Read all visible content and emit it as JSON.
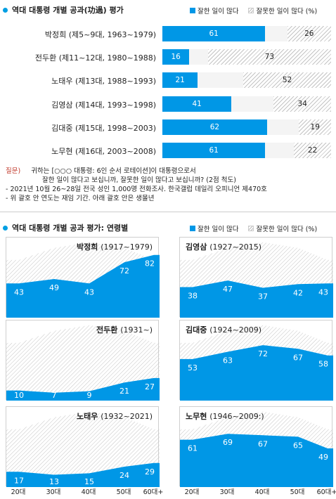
{
  "colors": {
    "positive": "#0097e6",
    "negative_hatch": "#c4c4c4",
    "accent": "#009fe3",
    "question": "#c0392b"
  },
  "section1": {
    "title": "역대 대통령 개별 공과(功過) 평가",
    "legend_pos": "잘한 일이 많다",
    "legend_neg": "잘못한 일이 많다 (%)"
  },
  "chart_data": [
    {
      "type": "bar",
      "stacked": true,
      "orientation": "horizontal",
      "title": "역대 대통령 개별 공과(功過) 평가",
      "categories": [
        "박정희 (제5~9대, 1963~1979)",
        "전두환 (제11~12대, 1980~1988)",
        "노태우 (제13대, 1988~1993)",
        "김영삼 (제14대, 1993~1998)",
        "김대중 (제15대, 1998~2003)",
        "노무현 (제16대, 2003~2008)"
      ],
      "series": [
        {
          "name": "잘한 일이 많다",
          "values": [
            61,
            16,
            21,
            41,
            62,
            61
          ]
        },
        {
          "name": "잘못한 일이 많다",
          "values": [
            26,
            73,
            52,
            34,
            19,
            22
          ]
        }
      ],
      "xlim": [
        0,
        100
      ],
      "legend": "top-right"
    },
    {
      "type": "area",
      "title": "역대 대통령 개별 공과 평가: 연령별",
      "categories": [
        "20대",
        "30대",
        "40대",
        "50대",
        "60대+"
      ],
      "legend": "top-right",
      "panels": [
        {
          "name": "박정희",
          "years": "(1917~1979)",
          "series": [
            {
              "name": "잘한 일이 많다",
              "values": [
                43,
                49,
                43,
                72,
                82
              ]
            }
          ]
        },
        {
          "name": "김영삼",
          "years": "(1927~2015)",
          "series": [
            {
              "name": "잘한 일이 많다",
              "values": [
                38,
                47,
                37,
                42,
                43
              ]
            }
          ]
        },
        {
          "name": "전두환",
          "years": "(1931~)",
          "series": [
            {
              "name": "잘한 일이 많다",
              "values": [
                10,
                7,
                9,
                21,
                27
              ]
            }
          ]
        },
        {
          "name": "김대중",
          "years": "(1924~2009)",
          "series": [
            {
              "name": "잘한 일이 많다",
              "values": [
                53,
                63,
                72,
                67,
                58
              ]
            }
          ]
        },
        {
          "name": "노태우",
          "years": "(1932~2021)",
          "series": [
            {
              "name": "잘한 일이 많다",
              "values": [
                17,
                13,
                15,
                24,
                29
              ]
            }
          ]
        },
        {
          "name": "노무현",
          "years": "(1946~2009:)",
          "series": [
            {
              "name": "잘한 일이 많다",
              "values": [
                61,
                69,
                67,
                65,
                49
              ]
            }
          ]
        }
      ]
    }
  ],
  "notes": {
    "question_label": "질문)",
    "question_line1": "귀하는 [○○○ 대통령: 6인 순서 로테이션]이 대통령으로서",
    "question_line2": "잘한 일이 많다고 보십니까, 잘못한 일이 많다고 보십니까? (2점 척도)",
    "line3": "- 2021년 10월 26~28일 전국 성인 1,000명 전화조사. 한국갤럽 데일리 오피니언 제470호",
    "line4": "- 위 괄호 안 연도는 재임 기간. 아래 괄호 안은 생몰년"
  },
  "section2": {
    "title": "역대 대통령 개별 공과 평가: 연령별",
    "legend_pos": "잘한 일이 많다",
    "legend_neg": "잘못한 일이 많다 (%)"
  }
}
